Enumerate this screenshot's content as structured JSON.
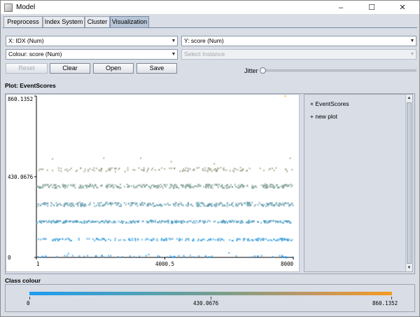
{
  "window": {
    "title": "Model",
    "minimize": "–",
    "maximize": "☐",
    "close": "✕"
  },
  "tabs": [
    {
      "label": "Preprocess",
      "active": false
    },
    {
      "label": "Index System",
      "active": false
    },
    {
      "label": "Cluster",
      "active": false
    },
    {
      "label": "Visualization",
      "active": true
    }
  ],
  "controls": {
    "x_axis": "X: IDX (Num)",
    "y_axis": "Y: score (Num)",
    "colour": "Colour: score (Num)",
    "select_instance": "Select Instance",
    "reset": "Reset",
    "clear": "Clear",
    "open": "Open",
    "save": "Save",
    "jitter_label": "Jitter",
    "jitter_value": 0
  },
  "plot": {
    "section_label": "Plot: EventScores",
    "legend": {
      "series_marker": "×",
      "series_name": "EventScores",
      "new_marker": "+",
      "new_plot": "new plot"
    }
  },
  "chart_data": {
    "type": "scatter",
    "xlim": [
      1,
      8000
    ],
    "ylim": [
      0,
      860.1352
    ],
    "x_tick_labels": [
      "1",
      "4000.5",
      "8000"
    ],
    "y_tick_labels": [
      "860.1352",
      "430.0676",
      "0"
    ],
    "y_tick_values": [
      860.1352,
      430.0676,
      0
    ],
    "x_tick_values": [
      1,
      4000.5,
      8000
    ],
    "marker": "×",
    "bands": [
      {
        "center": 468,
        "spread": 10,
        "count": 140
      },
      {
        "center": 380,
        "spread": 10,
        "count": 340
      },
      {
        "center": 283,
        "spread": 10,
        "count": 330
      },
      {
        "center": 190,
        "spread": 6,
        "count": 320
      },
      {
        "center": 95,
        "spread": 6,
        "count": 200
      },
      {
        "center": 5,
        "spread": 5,
        "count": 60
      }
    ],
    "outliers": [
      {
        "x": 7750,
        "y": 860
      },
      {
        "x": 5540,
        "y": 500
      },
      {
        "x": 2100,
        "y": 530
      },
      {
        "x": 3250,
        "y": 530
      },
      {
        "x": 7900,
        "y": 530
      },
      {
        "x": 500,
        "y": 525
      },
      {
        "x": 4200,
        "y": 510
      },
      {
        "x": 3500,
        "y": 15
      },
      {
        "x": 1000,
        "y": 20
      },
      {
        "x": 6000,
        "y": 25
      }
    ],
    "colour_scale": {
      "label": "Class colour",
      "min_label": "0",
      "mid_label": "430.0676",
      "max_label": "860.1352",
      "low_colour": "#1e9cf0",
      "high_colour": "#f59a20"
    }
  }
}
